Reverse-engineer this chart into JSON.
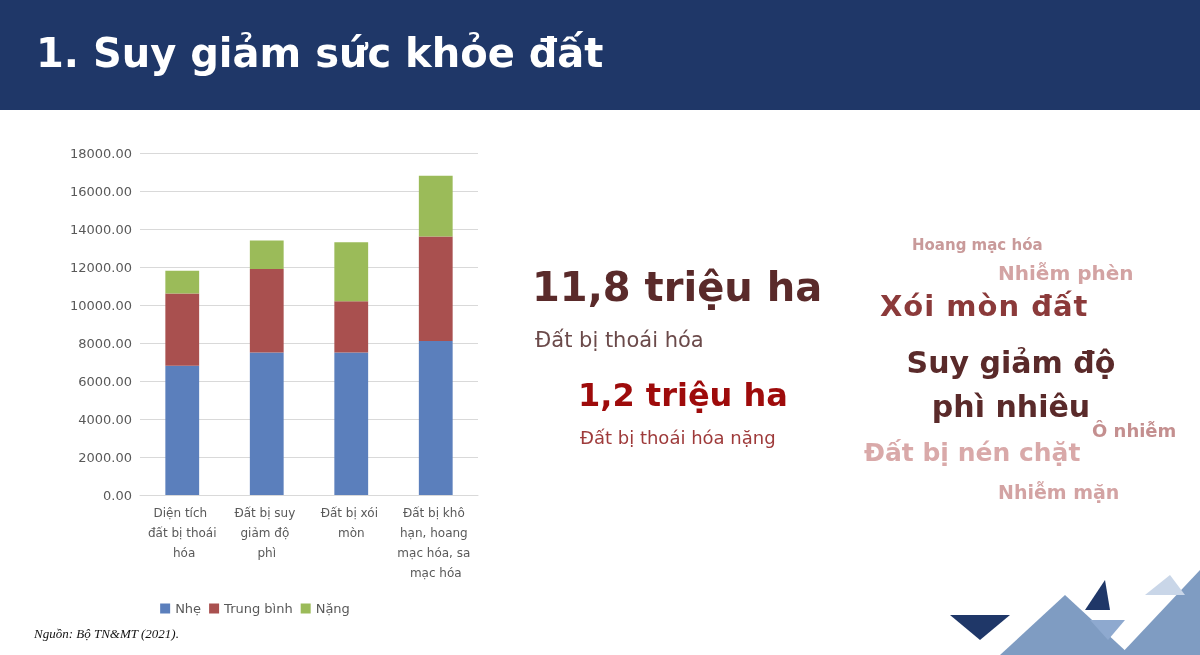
{
  "chart_data": {
    "type": "bar",
    "title": "1. Suy giảm sức khỏe đất",
    "categories": [
      "Diện tích đất bị thoái hóa",
      "Đất bị suy giảm độ phì",
      "Đất bị xói mòn",
      "Đất bị khô hạn, hoang mạc hóa, sa mạc hóa"
    ],
    "series": [
      {
        "name": "Nhẹ",
        "color": "#5b7fbc",
        "values": [
          6800,
          7500,
          7500,
          8100
        ]
      },
      {
        "name": "Trung bình",
        "color": "#a9504f",
        "values": [
          3800,
          4400,
          2700,
          5500
        ]
      },
      {
        "name": "Nặng",
        "color": "#9bbb59",
        "values": [
          1200,
          1500,
          3100,
          3200
        ]
      }
    ],
    "stacked": true,
    "ylim": [
      0,
      18000
    ],
    "yticks": [
      {
        "value": 0,
        "label": "0.00"
      },
      {
        "value": 2000,
        "label": "2000.00"
      },
      {
        "value": 4000,
        "label": "4000.00"
      },
      {
        "value": 6000,
        "label": "6000.00"
      },
      {
        "value": 8000,
        "label": "8000.00"
      },
      {
        "value": 10000,
        "label": "10000.00"
      },
      {
        "value": 12000,
        "label": "12000.00"
      },
      {
        "value": 14000,
        "label": "14000.00"
      },
      {
        "value": 16000,
        "label": "16000.00"
      },
      {
        "value": 18000,
        "label": "18000.00"
      }
    ],
    "grid": "y",
    "legend": "bottom",
    "annotations": [
      "11,8 triệu ha",
      "Đất bị thoái hóa",
      "1,2 triệu ha",
      "Đất bị thoái hóa nặng",
      "Hoang mạc hóa",
      "Nhiễm phèn",
      "Xói mòn đất",
      "Suy giảm độ phì nhiêu",
      "Ô nhiễm",
      "Đất bị nén chặt",
      "Nhiễm mặn",
      "Nguồn: Bộ TN&MT (2021)."
    ]
  }
}
